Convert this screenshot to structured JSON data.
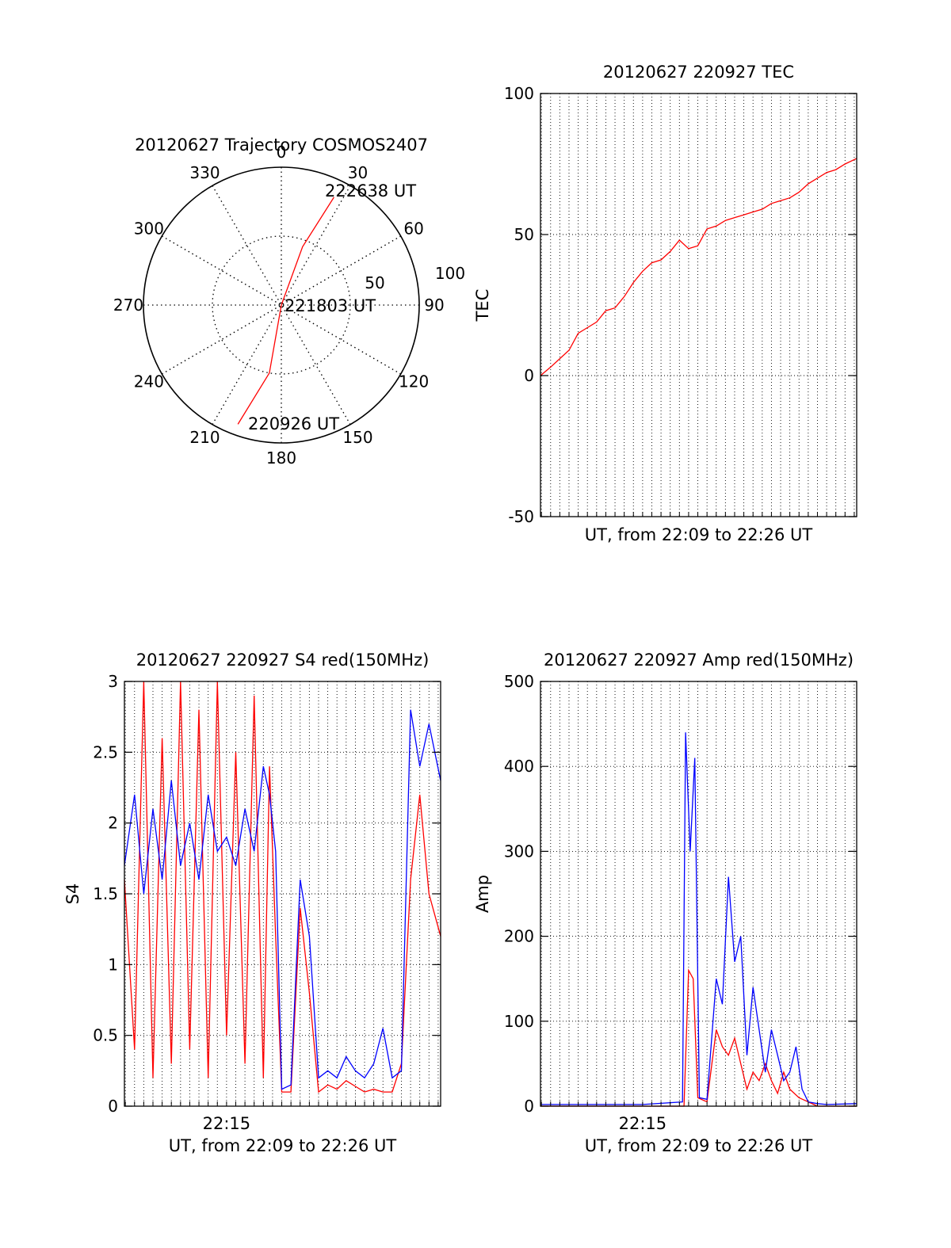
{
  "colors": {
    "red": "#ff0000",
    "blue": "#0000ff",
    "axis": "#000000",
    "grid": "#000000"
  },
  "chart_data": [
    {
      "id": "trajectory",
      "type": "polar",
      "title": "20120627 Trajectory COSMOS2407",
      "azimuth_labels": [
        "0",
        "30",
        "60",
        "90",
        "120",
        "150",
        "180",
        "210",
        "240",
        "270",
        "300",
        "330"
      ],
      "radial_labels": [
        "50",
        "100"
      ],
      "radial_max": 100,
      "grid": true,
      "track": {
        "color": "#ff0000",
        "points": [
          {
            "azimuth": 200,
            "radius": 92
          },
          {
            "azimuth": 190,
            "radius": 50
          },
          {
            "azimuth": 0,
            "radius": 0
          },
          {
            "azimuth": 20,
            "radius": 45
          },
          {
            "azimuth": 26,
            "radius": 87
          }
        ]
      },
      "annotations": [
        "222638 UT",
        "221803 UT",
        "220926 UT"
      ]
    },
    {
      "id": "tec",
      "type": "line",
      "title": "20120627 220927 TEC",
      "xlabel": "UT, from 22:09 to 22:26 UT",
      "ylabel": "TEC",
      "xlim": [
        "22:09:27",
        "22:26:38"
      ],
      "ylim": [
        -50,
        100
      ],
      "yticks": [
        "-50",
        "0",
        "50",
        "100"
      ],
      "xticks": [],
      "grid": true,
      "series": [
        {
          "color": "#ff0000",
          "x": [
            "22:09:27",
            "22:10:00",
            "22:10:30",
            "22:11:00",
            "22:11:30",
            "22:12:00",
            "22:12:30",
            "22:13:00",
            "22:13:30",
            "22:14:00",
            "22:14:30",
            "22:15:00",
            "22:15:30",
            "22:16:00",
            "22:16:30",
            "22:17:00",
            "22:17:30",
            "22:18:00",
            "22:18:30",
            "22:19:00",
            "22:19:30",
            "22:20:00",
            "22:20:30",
            "22:21:00",
            "22:21:30",
            "22:22:00",
            "22:22:30",
            "22:23:00",
            "22:23:30",
            "22:24:00",
            "22:24:30",
            "22:25:00",
            "22:25:30",
            "22:26:00",
            "22:26:38"
          ],
          "y": [
            0,
            3,
            6,
            9,
            15,
            17,
            19,
            23,
            24,
            28,
            33,
            37,
            40,
            41,
            44,
            48,
            45,
            46,
            52,
            53,
            55,
            56,
            57,
            58,
            59,
            61,
            62,
            63,
            65,
            68,
            70,
            72,
            73,
            75,
            77
          ]
        }
      ]
    },
    {
      "id": "s4",
      "type": "line",
      "title": "20120627 220927 S4 red(150MHz)",
      "xlabel": "UT, from 22:09 to 22:26 UT",
      "ylabel": "S4",
      "xlim": [
        "22:09:27",
        "22:26:38"
      ],
      "ylim": [
        0,
        3
      ],
      "yticks": [
        "0",
        "0.5",
        "1",
        "1.5",
        "2",
        "2.5",
        "3"
      ],
      "xticks": [
        "22:15"
      ],
      "grid": true,
      "series": [
        {
          "color": "#ff0000",
          "x": [
            "22:09:27",
            "22:10:00",
            "22:10:30",
            "22:11:00",
            "22:11:30",
            "22:12:00",
            "22:12:30",
            "22:13:00",
            "22:13:30",
            "22:14:00",
            "22:14:30",
            "22:15:00",
            "22:15:30",
            "22:16:00",
            "22:16:30",
            "22:17:00",
            "22:17:20",
            "22:17:40",
            "22:18:00",
            "22:18:30",
            "22:19:00",
            "22:19:30",
            "22:20:00",
            "22:20:30",
            "22:21:00",
            "22:21:30",
            "22:22:00",
            "22:22:30",
            "22:23:00",
            "22:23:30",
            "22:24:00",
            "22:24:30",
            "22:25:00",
            "22:25:30",
            "22:26:00",
            "22:26:38"
          ],
          "y": [
            1.6,
            0.4,
            3.0,
            0.2,
            2.6,
            0.3,
            3.0,
            0.4,
            2.8,
            0.2,
            3.0,
            0.5,
            2.5,
            0.3,
            2.9,
            0.2,
            2.4,
            1.2,
            0.1,
            0.1,
            1.4,
            0.8,
            0.1,
            0.15,
            0.12,
            0.18,
            0.14,
            0.1,
            0.12,
            0.1,
            0.1,
            0.3,
            1.6,
            2.2,
            1.5,
            1.2
          ]
        },
        {
          "color": "#0000ff",
          "x": [
            "22:09:27",
            "22:10:00",
            "22:10:30",
            "22:11:00",
            "22:11:30",
            "22:12:00",
            "22:12:30",
            "22:13:00",
            "22:13:30",
            "22:14:00",
            "22:14:30",
            "22:15:00",
            "22:15:30",
            "22:16:00",
            "22:16:30",
            "22:17:00",
            "22:17:20",
            "22:17:40",
            "22:18:00",
            "22:18:30",
            "22:19:00",
            "22:19:30",
            "22:20:00",
            "22:20:30",
            "22:21:00",
            "22:21:30",
            "22:22:00",
            "22:22:30",
            "22:23:00",
            "22:23:30",
            "22:24:00",
            "22:24:30",
            "22:25:00",
            "22:25:30",
            "22:26:00",
            "22:26:38"
          ],
          "y": [
            1.7,
            2.2,
            1.5,
            2.1,
            1.6,
            2.3,
            1.7,
            2.0,
            1.6,
            2.2,
            1.8,
            1.9,
            1.7,
            2.1,
            1.8,
            2.4,
            2.2,
            1.8,
            0.12,
            0.15,
            1.6,
            1.2,
            0.2,
            0.25,
            0.2,
            0.35,
            0.25,
            0.2,
            0.3,
            0.55,
            0.2,
            0.25,
            2.8,
            2.4,
            2.7,
            2.3
          ]
        }
      ]
    },
    {
      "id": "amp",
      "type": "line",
      "title": "20120627 220927 Amp red(150MHz)",
      "xlabel": "UT, from 22:09 to 22:26 UT",
      "ylabel": "Amp",
      "xlim": [
        "22:09:27",
        "22:26:38"
      ],
      "ylim": [
        0,
        500
      ],
      "yticks": [
        "0",
        "100",
        "200",
        "300",
        "400",
        "500"
      ],
      "xticks": [
        "22:15"
      ],
      "grid": true,
      "series": [
        {
          "color": "#ff0000",
          "x": [
            "22:09:27",
            "22:12:00",
            "22:15:00",
            "22:17:15",
            "22:17:30",
            "22:17:45",
            "22:18:00",
            "22:18:30",
            "22:19:00",
            "22:19:20",
            "22:19:40",
            "22:20:00",
            "22:20:20",
            "22:20:40",
            "22:21:00",
            "22:21:20",
            "22:21:40",
            "22:22:00",
            "22:22:20",
            "22:22:40",
            "22:23:00",
            "22:23:30",
            "22:24:00",
            "22:24:30",
            "22:25:00",
            "22:26:38"
          ],
          "y": [
            0,
            0,
            0,
            0,
            160,
            150,
            10,
            5,
            90,
            70,
            60,
            80,
            50,
            20,
            40,
            30,
            50,
            30,
            15,
            40,
            20,
            10,
            5,
            0,
            0,
            0
          ]
        },
        {
          "color": "#0000ff",
          "x": [
            "22:09:27",
            "22:12:00",
            "22:15:00",
            "22:17:10",
            "22:17:20",
            "22:17:35",
            "22:17:50",
            "22:18:05",
            "22:18:30",
            "22:19:00",
            "22:19:20",
            "22:19:40",
            "22:20:00",
            "22:20:20",
            "22:20:40",
            "22:21:00",
            "22:21:20",
            "22:21:40",
            "22:22:00",
            "22:22:20",
            "22:22:40",
            "22:23:00",
            "22:23:20",
            "22:23:40",
            "22:24:00",
            "22:24:30",
            "22:25:00",
            "22:26:38"
          ],
          "y": [
            2,
            2,
            2,
            5,
            440,
            300,
            410,
            10,
            8,
            150,
            120,
            270,
            170,
            200,
            60,
            140,
            90,
            40,
            90,
            60,
            30,
            40,
            70,
            20,
            5,
            3,
            2,
            3
          ]
        }
      ]
    }
  ]
}
